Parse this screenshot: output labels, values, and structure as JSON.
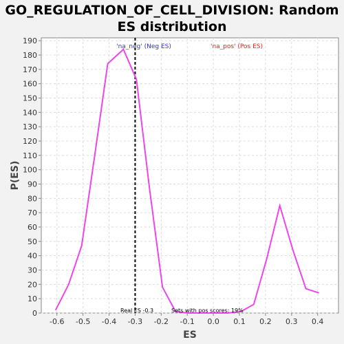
{
  "chart_data": {
    "type": "line",
    "title_line1": "GO_REGULATION_OF_CELL_DIVISION: Random",
    "title_line2": "ES distribution",
    "xlabel": "ES",
    "ylabel": "P(ES)",
    "xlim": [
      -0.66,
      0.48
    ],
    "ylim": [
      0,
      192
    ],
    "xticks": [
      -0.6,
      -0.5,
      -0.4,
      -0.3,
      -0.2,
      -0.1,
      0.0,
      0.1,
      0.2,
      0.3,
      0.4
    ],
    "xtick_labels": [
      "-0.6",
      "-0.5",
      "-0.4",
      "-0.3",
      "-0.2",
      "-0.1",
      "0.0",
      "0.1",
      "0.2",
      "0.3",
      "0.4"
    ],
    "yticks": [
      0,
      10,
      20,
      30,
      40,
      50,
      60,
      70,
      80,
      90,
      100,
      110,
      120,
      130,
      140,
      150,
      160,
      170,
      180,
      190
    ],
    "grid": true,
    "series": [
      {
        "color": "#ee44ee",
        "x": [
          -0.605,
          -0.555,
          -0.505,
          -0.455,
          -0.405,
          -0.345,
          -0.295,
          -0.245,
          -0.195,
          -0.145,
          -0.095,
          -0.045,
          0.005,
          0.055,
          0.105,
          0.155,
          0.205,
          0.255,
          0.305,
          0.355,
          0.405
        ],
        "y": [
          2,
          20,
          47,
          110,
          174,
          184,
          163,
          87,
          18,
          1,
          0,
          0,
          0,
          0,
          1,
          6,
          38,
          75,
          44,
          17,
          14
        ]
      }
    ],
    "real_es": -0.3,
    "annotations": {
      "neg_label": "'na_neg' (Neg ES)",
      "pos_label": "'na_pos' (Pos ES)",
      "real_es_text": "Real ES -0.3",
      "pos_scores_text": "Sets with pos scores: 19%"
    },
    "colors": {
      "line": "#ee44ee",
      "neg_label": "#3333cc",
      "pos_label": "#dd2222",
      "plot_bg": "#ffffff",
      "grid": "#dcdcdc"
    }
  }
}
